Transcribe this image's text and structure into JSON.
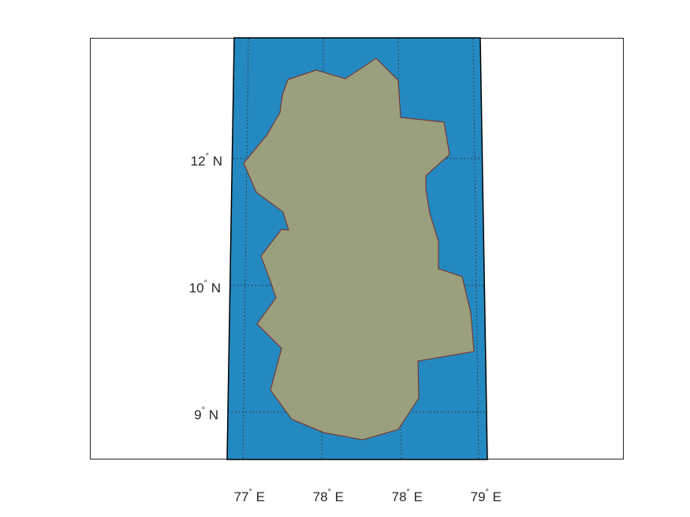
{
  "map": {
    "projection": "trapezoidal",
    "colors": {
      "ocean": "#2589c1",
      "land": "#9a9f7e",
      "coast": "#7a2a1f",
      "frame": "#262626",
      "grid": "#262626",
      "axes_box": "#262626"
    },
    "frame": {
      "lon_bottom": [
        77.0,
        79.0
      ],
      "lon_top": [
        77.0,
        79.0
      ]
    },
    "lat_labels": [
      {
        "deg": "12",
        "sup": "°",
        "dir": "N"
      },
      {
        "deg": "10",
        "sup": "°",
        "dir": "N"
      },
      {
        "deg": "9",
        "sup": "°",
        "dir": "N"
      }
    ],
    "lon_labels": [
      {
        "deg": "77",
        "sup": "°",
        "dir": "E"
      },
      {
        "deg": "78",
        "sup": "°",
        "dir": "E"
      },
      {
        "deg": "78",
        "sup": "°",
        "dir": "E"
      },
      {
        "deg": "79",
        "sup": "°",
        "dir": "E"
      }
    ],
    "grid": "dotted"
  }
}
